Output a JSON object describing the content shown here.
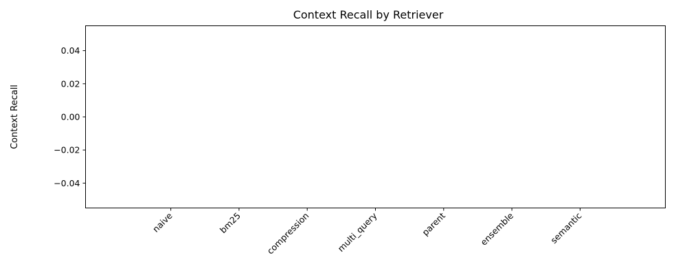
{
  "chart_data": {
    "type": "bar",
    "title": "Context Recall by Retriever",
    "xlabel": "",
    "ylabel": "Context Recall",
    "categories": [
      "naive",
      "bm25",
      "compression",
      "multi_query",
      "parent",
      "ensemble",
      "semantic"
    ],
    "values": [
      0,
      0,
      0,
      0,
      0,
      0,
      0
    ],
    "ylim": [
      -0.055,
      0.055
    ],
    "yticks": [
      -0.04,
      -0.02,
      0.0,
      0.02,
      0.04
    ],
    "ytick_labels": [
      "−0.04",
      "−0.02",
      "0.00",
      "0.02",
      "0.04"
    ],
    "xtick_rotation": 45,
    "grid": false,
    "legend": "none"
  }
}
